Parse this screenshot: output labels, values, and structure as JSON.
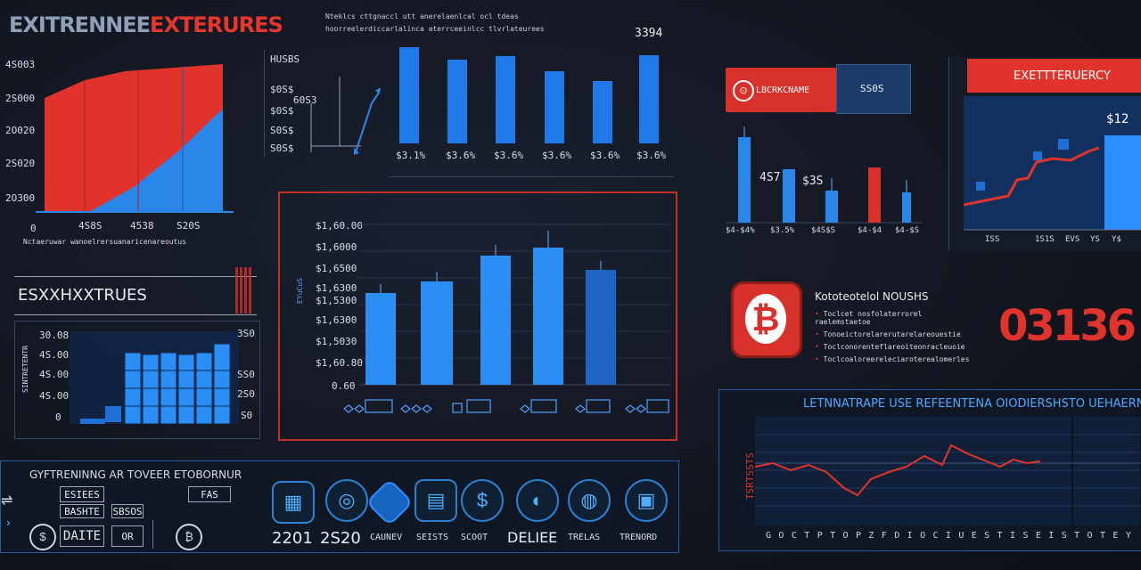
{
  "header": {
    "title_left": "EXITRENNEE",
    "title_right": "EXTERURES",
    "subtitle_line1": "Nteklcs cttgnaccl utt anerelaenlcal ocl tdeas",
    "subtitle_line2": "hoorreelerdiccarlalinca aterrceeinlcc tlvrlateurees",
    "top_value": "3394"
  },
  "area_chart": {
    "y_labels": [
      "4S003",
      "2S000",
      "2O020",
      "2S020",
      "2O300"
    ],
    "zero": "0",
    "x_labels": [
      "4S8S",
      "4538",
      "S20S"
    ],
    "caption": "Nctaeruwar wanoelrersuanaricenareoutus",
    "series_colors": {
      "red": "#e0332b",
      "blue": "#2a86e8"
    },
    "chart_data": {
      "type": "area",
      "series": [
        {
          "values": [
            60,
            65,
            100,
            100,
            100
          ]
        },
        {
          "values": [
            0,
            18,
            40,
            62,
            95
          ]
        }
      ],
      "y_range": [
        0,
        100
      ]
    }
  },
  "mini_line": {
    "labels": [
      "HUSBS",
      "$0S$",
      "$0S$",
      "S0S$",
      "S0S$"
    ],
    "mid_label": "60S3"
  },
  "bar_top": {
    "x_labels": [
      "$3.1%",
      "$3.6%",
      "$3.6%",
      "$3.6%",
      "$3.6%",
      "$3.6%"
    ],
    "chart_data": {
      "type": "bar",
      "categories": [
        "$3.1%",
        "$3.6%",
        "$3.6%",
        "$3.6%",
        "$3.6%",
        "$3.6%"
      ],
      "values": [
        108,
        92,
        94,
        80,
        68,
        98
      ]
    }
  },
  "center_bar": {
    "y_labels": [
      "$1,60.00",
      "$1,6000",
      "$1,6500",
      "$1,6300",
      "$1,5300",
      "$1,6300",
      "$1,5030",
      "$1,60.80",
      "0.60"
    ],
    "side_label": "EYuCuS",
    "chart_data": {
      "type": "bar",
      "values": [
        98,
        112,
        142,
        150,
        126
      ],
      "color": "#2b8ef5"
    }
  },
  "left_stack": {
    "title": "ESXXHXXTRUES",
    "y_labels": [
      "30.08",
      "4S.00",
      "4S.00",
      "4S.00",
      "0"
    ],
    "right_labels": [
      "3S0",
      "SS0",
      "2S0",
      "S0"
    ],
    "side_text": "SINTRETENTR"
  },
  "exchange": {
    "badge_label": "LBCRKCNAME",
    "value_label": "SS0S",
    "annotation_left": "4S7",
    "annotation_right": "$3S",
    "x_labels": [
      "$4-$4%",
      "$3.5%",
      "$4S$S",
      "$4-$4",
      "$4-$S"
    ],
    "chart_data": {
      "type": "bar",
      "values": [
        95,
        60,
        35,
        60,
        35
      ],
      "colors": [
        "#2a86e8",
        "#2a86e8",
        "#2a86e8",
        "#d8332a",
        "#2a86e8"
      ]
    }
  },
  "currency": {
    "title": "EXETTTERUERCY",
    "value": "$12",
    "x_labels": [
      "ISS",
      "1S1S",
      "EVS",
      "YS",
      "Y$"
    ]
  },
  "bitcoin": {
    "symbol": "₿",
    "list_title": "Kototeotelol NOUSHS",
    "items": [
      "Toclcet nosfolaterrorel raelemstaetoe",
      "Tonoeictorelarerutarelareouestie",
      "Toclconorenteflareoiteonracleuoie",
      "Toclcoaloreereleciaroterealomerles"
    ],
    "big_number": "03136"
  },
  "line_panel": {
    "title": "LETNNATRAPE USE REFEENTENA OIODIERSHSTO UEHAERN",
    "side_text": "TSRTSSTS",
    "x_labels": [
      "G",
      "O",
      "C",
      "T",
      "P",
      "T",
      "O",
      "P",
      "Z",
      "F",
      "D",
      "I",
      "O",
      "C",
      "I",
      "U",
      "E",
      "S",
      "T",
      "I",
      "S",
      "E",
      "I",
      "S",
      "T",
      "O",
      "T",
      "E",
      "Y"
    ],
    "chart_data": {
      "type": "line",
      "values": [
        52,
        48,
        55,
        42,
        22,
        20,
        35,
        42,
        48,
        62,
        58,
        72,
        60,
        66,
        62,
        60
      ],
      "color": "#e0332b"
    }
  },
  "bottom_left": {
    "title": "GYFTRENINNG AR TOVEER ETOBORNUR",
    "boxes": [
      "ESIEES",
      "BASHTE",
      "SBSOS",
      "DAITE",
      "OR",
      "FAS"
    ]
  },
  "toolbar": {
    "year1": "2201",
    "year2": "2S20",
    "labels": [
      "CAUNEV",
      "SEISTS",
      "SCOOT",
      "DELIEE",
      "TRELAS",
      "TRENORD"
    ],
    "icons": [
      "chart-icon",
      "coin-icon",
      "diamond-icon",
      "document-icon",
      "dollar-icon",
      "compass-icon",
      "globe-icon",
      "briefcase-icon"
    ]
  }
}
